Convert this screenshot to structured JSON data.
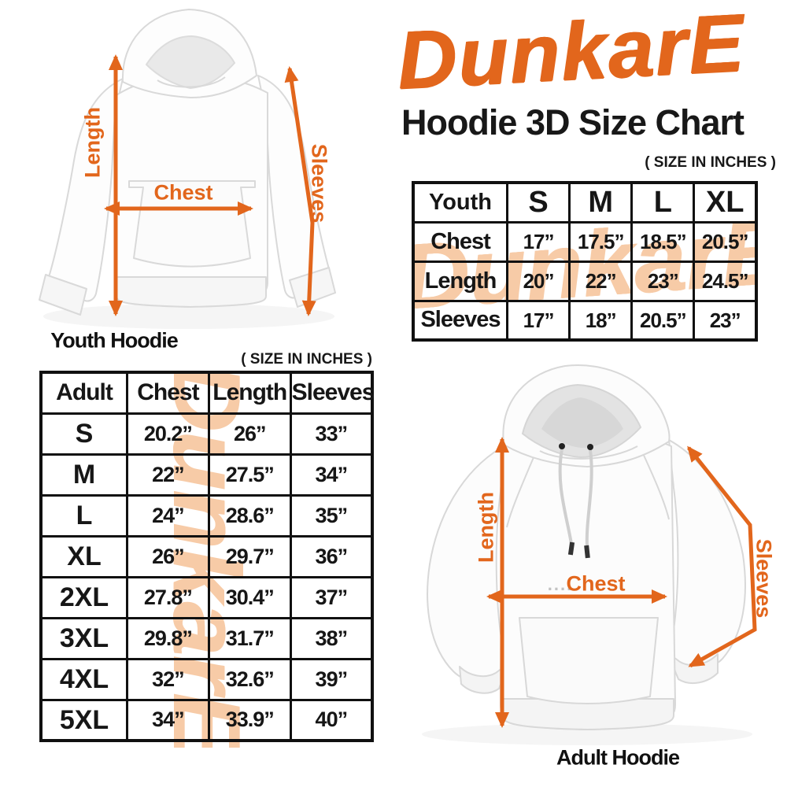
{
  "brand": {
    "logo_text": "DunkarE",
    "logo_color": "#e2661c"
  },
  "header": {
    "title": "Hoodie 3D Size Chart"
  },
  "watermark": {
    "text": "DunkarE",
    "color": "#f7cba7"
  },
  "colors": {
    "accent_orange": "#e2661c",
    "text_black": "#161616",
    "table_border": "#101010",
    "watermark_peach": "#f7cba7"
  },
  "youth_section": {
    "size_note": "( SIZE IN INCHES )",
    "figure": {
      "caption": "Youth Hoodie",
      "length_label": "Length",
      "chest_label": "Chest",
      "sleeves_label": "Sleeves"
    },
    "table": {
      "header": [
        "Youth",
        "S",
        "M",
        "L",
        "XL"
      ],
      "rows": [
        {
          "label": "Chest",
          "values": [
            "17”",
            "17.5”",
            "18.5”",
            "20.5”"
          ]
        },
        {
          "label": "Length",
          "values": [
            "20”",
            "22”",
            "23”",
            "24.5”"
          ]
        },
        {
          "label": "Sleeves",
          "values": [
            "17”",
            "18”",
            "20.5”",
            "23”"
          ]
        }
      ]
    }
  },
  "adult_section": {
    "size_note": "( SIZE IN INCHES )",
    "figure": {
      "caption": "Adult Hoodie",
      "length_label": "Length",
      "chest_label": "Chest",
      "chest_dots": "....",
      "sleeves_label": "Sleeves"
    },
    "table": {
      "header": [
        "Adult",
        "Chest",
        "Length",
        "Sleeves"
      ],
      "rows": [
        {
          "label": "S",
          "values": [
            "20.2”",
            "26”",
            "33”"
          ]
        },
        {
          "label": "M",
          "values": [
            "22”",
            "27.5”",
            "34”"
          ]
        },
        {
          "label": "L",
          "values": [
            "24”",
            "28.6”",
            "35”"
          ]
        },
        {
          "label": "XL",
          "values": [
            "26”",
            "29.7”",
            "36”"
          ]
        },
        {
          "label": "2XL",
          "values": [
            "27.8”",
            "30.4”",
            "37”"
          ]
        },
        {
          "label": "3XL",
          "values": [
            "29.8”",
            "31.7”",
            "38”"
          ]
        },
        {
          "label": "4XL",
          "values": [
            "32”",
            "32.6”",
            "39”"
          ]
        },
        {
          "label": "5XL",
          "values": [
            "34”",
            "33.9”",
            "40”"
          ]
        }
      ]
    }
  },
  "chart_data": [
    {
      "type": "table",
      "title": "Youth Hoodie Size Chart",
      "unit": "inches",
      "columns": [
        "Youth",
        "S",
        "M",
        "L",
        "XL"
      ],
      "rows": [
        [
          "Chest",
          17,
          17.5,
          18.5,
          20.5
        ],
        [
          "Length",
          20,
          22,
          23,
          24.5
        ],
        [
          "Sleeves",
          17,
          18,
          20.5,
          23
        ]
      ]
    },
    {
      "type": "table",
      "title": "Adult Hoodie Size Chart",
      "unit": "inches",
      "columns": [
        "Adult",
        "Chest",
        "Length",
        "Sleeves"
      ],
      "rows": [
        [
          "S",
          20.2,
          26,
          33
        ],
        [
          "M",
          22,
          27.5,
          34
        ],
        [
          "L",
          24,
          28.6,
          35
        ],
        [
          "XL",
          26,
          29.7,
          36
        ],
        [
          "2XL",
          27.8,
          30.4,
          37
        ],
        [
          "3XL",
          29.8,
          31.7,
          38
        ],
        [
          "4XL",
          32,
          32.6,
          39
        ],
        [
          "5XL",
          34,
          33.9,
          40
        ]
      ]
    }
  ]
}
